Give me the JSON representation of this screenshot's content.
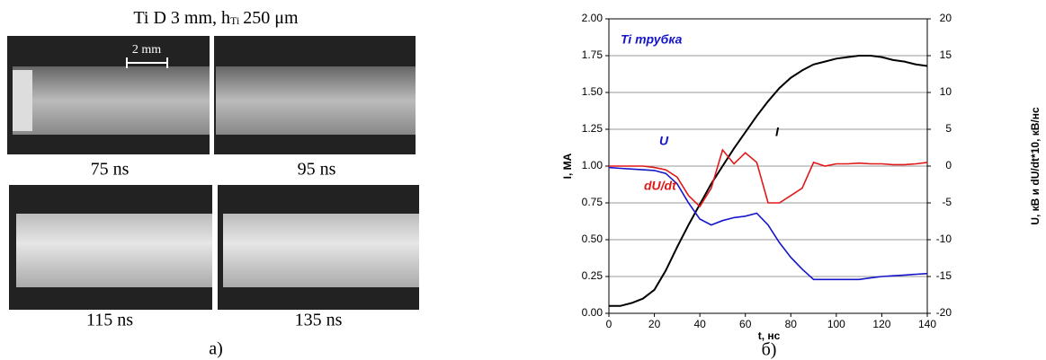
{
  "panel_a": {
    "title_main": "Ti D 3 mm, h",
    "title_sub": "Ti",
    "title_end": "250 μm",
    "scale_bar": "2 mm",
    "frames": [
      "75 ns",
      "95 ns",
      "115 ns",
      "135 ns"
    ],
    "label": "а)"
  },
  "chart_data": {
    "type": "line",
    "label": "б)",
    "x_label": "t, нс",
    "y_label": "I, MA",
    "y2_label": "U, кВ и dU/dt*10, кВ/нс",
    "annotations": [
      "Ti трубка",
      "I",
      "U",
      "dU/dt"
    ],
    "x": [
      0,
      5,
      10,
      15,
      20,
      25,
      30,
      35,
      40,
      45,
      50,
      55,
      60,
      65,
      70,
      75,
      80,
      85,
      90,
      95,
      100,
      105,
      110,
      115,
      120,
      125,
      130,
      135,
      140
    ],
    "xlim": [
      0,
      140
    ],
    "xticks": [
      0,
      20,
      40,
      60,
      80,
      100,
      120,
      140
    ],
    "ylim": [
      0,
      2
    ],
    "yticks": [
      {
        "value": 0,
        "label": "0.00"
      },
      0.25,
      {
        "value": 0.5,
        "label": "0.50"
      },
      0.75,
      {
        "value": 1,
        "label": "1.00"
      },
      1.25,
      {
        "value": 1.5,
        "label": "1.50"
      },
      1.75,
      {
        "value": 2,
        "label": "2.00"
      }
    ],
    "y2lim": [
      -20,
      20
    ],
    "y2ticks": [
      -20,
      -15,
      -10,
      -5,
      0,
      5,
      10,
      15,
      20
    ],
    "grid": true,
    "series": [
      {
        "name": "I",
        "color": "#000000",
        "values": [
          0.05,
          0.05,
          0.07,
          0.1,
          0.16,
          0.29,
          0.45,
          0.6,
          0.74,
          0.88,
          1.0,
          1.12,
          1.23,
          1.34,
          1.44,
          1.53,
          1.6,
          1.65,
          1.69,
          1.71,
          1.73,
          1.74,
          1.75,
          1.75,
          1.74,
          1.72,
          1.71,
          1.69,
          1.68
        ]
      },
      {
        "name": "U",
        "color": "#1515cc",
        "axis": "y2",
        "values": [
          -0.2,
          -0.3,
          -0.4,
          -0.5,
          -0.6,
          -1.0,
          -2.4,
          -5,
          -7.2,
          -8,
          -7.4,
          -7,
          -6.8,
          -6.4,
          -8,
          -10.4,
          -12.4,
          -14,
          -15.4,
          -15.4,
          -15.4,
          -15.4,
          -15.4,
          -15.2,
          -15,
          -14.9,
          -14.8,
          -14.7,
          -14.6
        ]
      },
      {
        "name": "dU/dt",
        "color": "#e01818",
        "axis": "y2",
        "values": [
          0,
          0,
          0,
          0,
          -0.2,
          -0.5,
          -1.5,
          -4,
          -5.5,
          -3,
          2.2,
          0.3,
          1.8,
          0.5,
          -5,
          -5,
          -4,
          -3,
          0.5,
          0,
          0.3,
          0.3,
          0.4,
          0.3,
          0.3,
          0.2,
          0.2,
          0.3,
          0.5
        ]
      }
    ]
  }
}
